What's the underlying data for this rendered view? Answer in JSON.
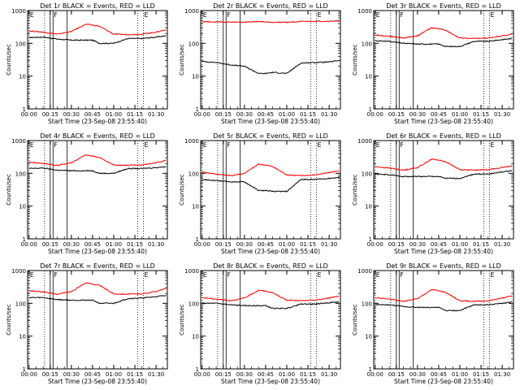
{
  "colors": {
    "background": "#ffffff",
    "frame": "#000000",
    "events": "#000000",
    "lld": "#ff0000"
  },
  "common": {
    "xlabel": "Start Time (23-Sep-08 23:55:40)",
    "ylabel": "Counts/sec",
    "x_ticks": [
      "00:00",
      "00:15",
      "00:30",
      "00:45",
      "01:00",
      "01:15",
      "01:30"
    ],
    "y_ticks": [
      "1",
      "10",
      "100",
      "1000"
    ],
    "xlim_minutes": [
      -1,
      98
    ],
    "ylim": [
      1,
      1000
    ],
    "yscale": "log",
    "markers": [
      {
        "label": "E",
        "minute": 0,
        "style": "dotted"
      },
      {
        "label": "",
        "minute": 11,
        "style": "dotted"
      },
      {
        "label": "",
        "minute": 15,
        "style": "solid"
      },
      {
        "label": "F",
        "minute": 17,
        "style": "solid"
      },
      {
        "label": "",
        "minute": 27,
        "style": "solid"
      },
      {
        "label": "",
        "minute": 77,
        "style": "dotted"
      },
      {
        "label": "E",
        "minute": 81,
        "style": "dotted"
      }
    ]
  },
  "chart_data": [
    {
      "type": "line",
      "title": "Det 1r BLACK = Events, RED = LLD",
      "x": [
        0,
        10,
        20,
        30,
        40,
        45,
        50,
        60,
        70,
        80,
        90,
        97
      ],
      "series": [
        {
          "name": "Events",
          "values": [
            150,
            155,
            135,
            125,
            125,
            125,
            100,
            100,
            140,
            140,
            155,
            170
          ]
        },
        {
          "name": "LLD",
          "values": [
            240,
            220,
            190,
            230,
            380,
            360,
            330,
            190,
            185,
            190,
            220,
            260
          ]
        }
      ]
    },
    {
      "type": "line",
      "title": "Det 2r BLACK = Events, RED = LLD",
      "x": [
        0,
        10,
        20,
        30,
        40,
        45,
        50,
        60,
        70,
        80,
        90,
        97
      ],
      "series": [
        {
          "name": "Events",
          "values": [
            28,
            26,
            22,
            20,
            12,
            12,
            13,
            12,
            25,
            26,
            27,
            30
          ]
        },
        {
          "name": "LLD",
          "values": [
            460,
            450,
            440,
            440,
            460,
            450,
            440,
            440,
            460,
            470,
            470,
            480
          ]
        }
      ]
    },
    {
      "type": "line",
      "title": "Det 3r BLACK = Events, RED = LLD",
      "x": [
        0,
        10,
        20,
        30,
        40,
        45,
        50,
        60,
        70,
        80,
        90,
        97
      ],
      "series": [
        {
          "name": "Events",
          "values": [
            120,
            115,
            100,
            95,
            95,
            95,
            80,
            80,
            115,
            115,
            130,
            140
          ]
        },
        {
          "name": "LLD",
          "values": [
            180,
            165,
            145,
            170,
            300,
            280,
            250,
            145,
            140,
            145,
            170,
            190
          ]
        }
      ]
    },
    {
      "type": "line",
      "title": "Det 4r BLACK = Events, RED = LLD",
      "x": [
        0,
        10,
        20,
        30,
        40,
        45,
        50,
        60,
        70,
        80,
        90,
        97
      ],
      "series": [
        {
          "name": "Events",
          "values": [
            140,
            145,
            125,
            120,
            120,
            120,
            100,
            100,
            140,
            140,
            150,
            160
          ]
        },
        {
          "name": "LLD",
          "values": [
            220,
            200,
            175,
            210,
            360,
            340,
            300,
            180,
            175,
            180,
            210,
            250
          ]
        }
      ]
    },
    {
      "type": "line",
      "title": "Det 5r BLACK = Events, RED = LLD",
      "x": [
        0,
        10,
        20,
        30,
        40,
        45,
        50,
        60,
        70,
        80,
        90,
        97
      ],
      "series": [
        {
          "name": "Events",
          "values": [
            65,
            60,
            55,
            55,
            30,
            30,
            28,
            28,
            65,
            65,
            70,
            75
          ]
        },
        {
          "name": "LLD",
          "values": [
            110,
            95,
            85,
            100,
            190,
            180,
            160,
            90,
            85,
            90,
            105,
            120
          ]
        }
      ]
    },
    {
      "type": "line",
      "title": "Det 6r BLACK = Events, RED = LLD",
      "x": [
        0,
        10,
        20,
        30,
        40,
        45,
        50,
        60,
        70,
        80,
        90,
        97
      ],
      "series": [
        {
          "name": "Events",
          "values": [
            95,
            90,
            80,
            80,
            80,
            80,
            70,
            70,
            95,
            95,
            110,
            120
          ]
        },
        {
          "name": "LLD",
          "values": [
            160,
            145,
            125,
            150,
            270,
            255,
            225,
            130,
            125,
            130,
            150,
            170
          ]
        }
      ]
    },
    {
      "type": "line",
      "title": "Det 7r BLACK = Events, RED = LLD",
      "x": [
        0,
        10,
        20,
        30,
        40,
        45,
        50,
        60,
        70,
        80,
        90,
        97
      ],
      "series": [
        {
          "name": "Events",
          "values": [
            150,
            150,
            130,
            125,
            125,
            125,
            100,
            100,
            140,
            145,
            160,
            175
          ]
        },
        {
          "name": "LLD",
          "values": [
            240,
            225,
            190,
            230,
            420,
            390,
            350,
            195,
            190,
            195,
            230,
            280
          ]
        }
      ]
    },
    {
      "type": "line",
      "title": "Det 8r BLACK = Events, RED = LLD",
      "x": [
        0,
        10,
        20,
        30,
        40,
        45,
        50,
        60,
        70,
        80,
        90,
        97
      ],
      "series": [
        {
          "name": "Events",
          "values": [
            100,
            100,
            90,
            85,
            85,
            85,
            70,
            70,
            95,
            95,
            105,
            110
          ]
        },
        {
          "name": "LLD",
          "values": [
            150,
            135,
            120,
            145,
            250,
            235,
            210,
            125,
            120,
            125,
            145,
            170
          ]
        }
      ]
    },
    {
      "type": "line",
      "title": "Det 9r BLACK = Events, RED = LLD",
      "x": [
        0,
        10,
        20,
        30,
        40,
        45,
        50,
        60,
        70,
        80,
        90,
        97
      ],
      "series": [
        {
          "name": "Events",
          "values": [
            90,
            90,
            80,
            75,
            75,
            75,
            60,
            60,
            90,
            90,
            100,
            110
          ]
        },
        {
          "name": "LLD",
          "values": [
            150,
            135,
            115,
            140,
            260,
            245,
            215,
            120,
            115,
            120,
            145,
            170
          ]
        }
      ]
    }
  ]
}
